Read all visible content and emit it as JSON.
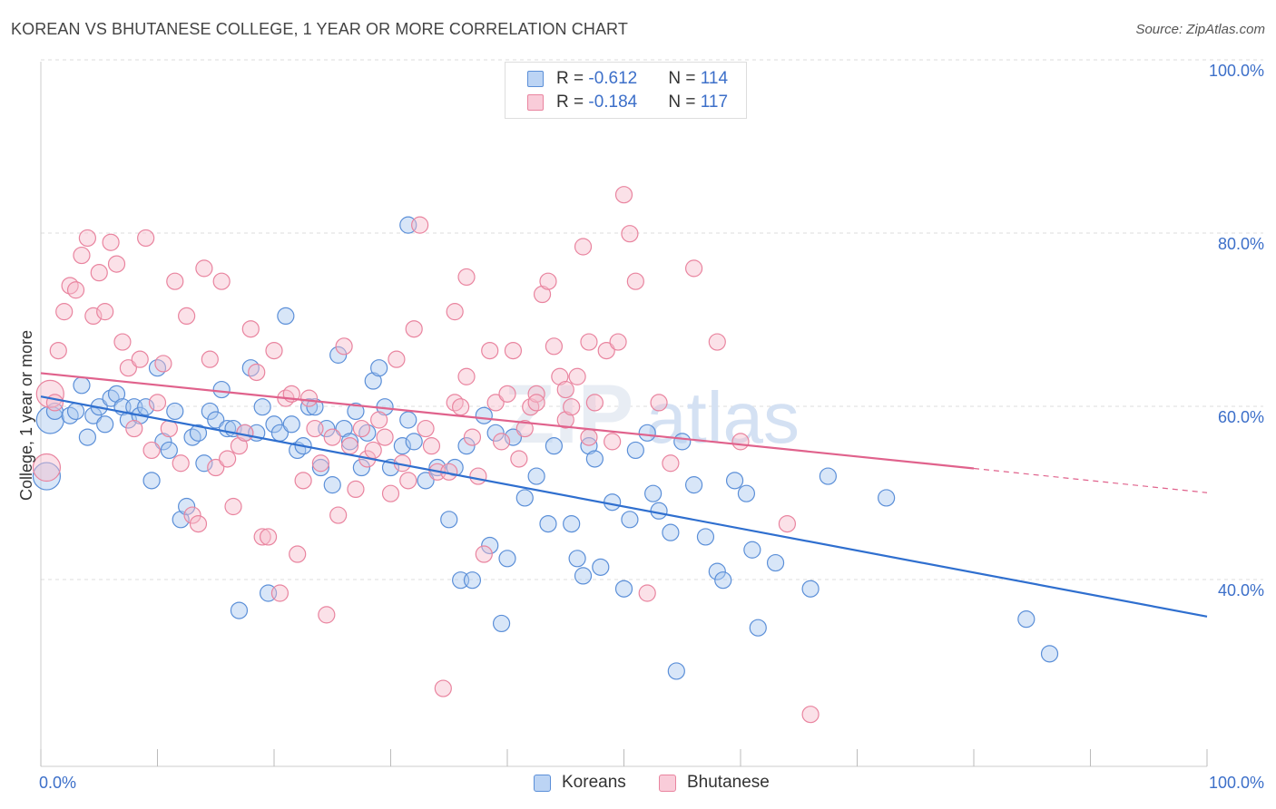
{
  "header": {
    "title": "KOREAN VS BHUTANESE COLLEGE, 1 YEAR OR MORE CORRELATION CHART",
    "source": "Source: ZipAtlas.com"
  },
  "legend": {
    "rows": [
      {
        "r_label": "R = ",
        "r_value": "-0.612",
        "n_label": "N = ",
        "n_value": "114"
      },
      {
        "r_label": "R = ",
        "r_value": "-0.184",
        "n_label": "N = ",
        "n_value": "117"
      }
    ]
  },
  "watermark": {
    "zip": "ZIP",
    "atlas": "atlas"
  },
  "colors": {
    "korean_fill": "#a9c8f0",
    "korean_stroke": "#5b8fd8",
    "korean_line": "#2f6fcf",
    "bhutanese_fill": "#f6bccd",
    "bhutanese_stroke": "#e9849f",
    "bhutanese_line": "#e0628c",
    "tick_label": "#3c6fc9",
    "grid": "#dddddd"
  },
  "chart_data": {
    "type": "scatter",
    "title": "KOREAN VS BHUTANESE COLLEGE, 1 YEAR OR MORE CORRELATION CHART",
    "xlabel": "",
    "ylabel": "College, 1 year or more",
    "xlim": [
      0,
      100
    ],
    "ylim": [
      20,
      104
    ],
    "x_tick_labels": [
      "0.0%",
      "100.0%"
    ],
    "y_ticks": [
      {
        "value": 40,
        "label": "40.0%"
      },
      {
        "value": 60,
        "label": "60.0%"
      },
      {
        "value": 80,
        "label": "80.0%"
      },
      {
        "value": 100,
        "label": "100.0%"
      }
    ],
    "grid": true,
    "legend_position": "top-center",
    "series": [
      {
        "name": "Koreans",
        "trend": {
          "x": [
            0,
            100
          ],
          "y": [
            62.7,
            37.3
          ]
        },
        "points": [
          [
            0.5,
            53.5
          ],
          [
            0.8,
            60
          ],
          [
            1.2,
            61
          ],
          [
            2.5,
            60.5
          ],
          [
            3,
            61
          ],
          [
            3.5,
            64
          ],
          [
            4,
            58
          ],
          [
            4.5,
            60.5
          ],
          [
            5,
            61.5
          ],
          [
            5.5,
            59.5
          ],
          [
            6,
            62.5
          ],
          [
            6.5,
            63
          ],
          [
            7,
            61.5
          ],
          [
            7.5,
            60
          ],
          [
            8,
            61.5
          ],
          [
            8.5,
            60.5
          ],
          [
            9,
            61.5
          ],
          [
            9.5,
            53
          ],
          [
            10,
            66
          ],
          [
            10.5,
            57.5
          ],
          [
            11,
            56.5
          ],
          [
            11.5,
            61
          ],
          [
            12,
            48.5
          ],
          [
            12.5,
            50
          ],
          [
            13,
            58
          ],
          [
            13.5,
            58.5
          ],
          [
            14,
            55
          ],
          [
            14.5,
            61
          ],
          [
            15,
            60
          ],
          [
            15.5,
            63.5
          ],
          [
            16,
            59
          ],
          [
            16.5,
            59
          ],
          [
            17,
            38
          ],
          [
            17.5,
            58.5
          ],
          [
            18,
            66
          ],
          [
            18.5,
            58.5
          ],
          [
            19,
            61.5
          ],
          [
            19.5,
            40
          ],
          [
            20,
            59.5
          ],
          [
            20.5,
            58.5
          ],
          [
            21,
            72
          ],
          [
            21.5,
            59.5
          ],
          [
            22,
            56.5
          ],
          [
            22.5,
            57
          ],
          [
            23,
            61.5
          ],
          [
            23.5,
            61.5
          ],
          [
            24,
            54.5
          ],
          [
            24.5,
            59
          ],
          [
            25,
            52.5
          ],
          [
            25.5,
            67.5
          ],
          [
            26,
            59
          ],
          [
            26.5,
            57.5
          ],
          [
            27,
            61
          ],
          [
            27.5,
            54.5
          ],
          [
            28,
            58.5
          ],
          [
            28.5,
            64.5
          ],
          [
            29,
            66
          ],
          [
            29.5,
            61.5
          ],
          [
            30,
            54.5
          ],
          [
            31,
            57
          ],
          [
            31.5,
            60
          ],
          [
            32,
            57.5
          ],
          [
            33,
            53
          ],
          [
            34,
            54.5
          ],
          [
            35,
            48.5
          ],
          [
            35.5,
            54.5
          ],
          [
            36,
            41.5
          ],
          [
            36.5,
            57
          ],
          [
            37,
            41.5
          ],
          [
            38,
            60.5
          ],
          [
            38.5,
            45.5
          ],
          [
            39,
            58.5
          ],
          [
            40,
            44
          ],
          [
            40.5,
            58
          ],
          [
            39.5,
            36.5
          ],
          [
            41.5,
            51
          ],
          [
            42.5,
            53.5
          ],
          [
            43.5,
            48
          ],
          [
            44,
            57
          ],
          [
            45.5,
            48
          ],
          [
            46,
            44
          ],
          [
            46.5,
            42
          ],
          [
            47,
            57
          ],
          [
            47.5,
            55.5
          ],
          [
            48,
            43
          ],
          [
            49,
            50.5
          ],
          [
            50,
            40.5
          ],
          [
            50.5,
            48.5
          ],
          [
            51,
            56.5
          ],
          [
            52,
            58.5
          ],
          [
            52.5,
            51.5
          ],
          [
            53,
            49.5
          ],
          [
            54,
            47
          ],
          [
            54.5,
            31
          ],
          [
            55,
            57.5
          ],
          [
            56,
            52.5
          ],
          [
            57,
            46.5
          ],
          [
            58,
            42.5
          ],
          [
            58.5,
            41.5
          ],
          [
            59.5,
            53
          ],
          [
            60.5,
            51.5
          ],
          [
            61,
            45
          ],
          [
            61.5,
            36
          ],
          [
            63,
            43.5
          ],
          [
            66,
            40.5
          ],
          [
            67.5,
            53.5
          ],
          [
            72.5,
            51
          ],
          [
            84.5,
            37
          ],
          [
            86.5,
            33
          ],
          [
            31.5,
            82.5
          ]
        ]
      },
      {
        "name": "Bhutanese",
        "trend": {
          "x": [
            0,
            80
          ],
          "y": [
            65.4,
            54.4
          ]
        },
        "trend_dashed": {
          "x": [
            80,
            100
          ],
          "y": [
            54.4,
            51.6
          ]
        },
        "points": [
          [
            0.5,
            54.5
          ],
          [
            0.8,
            63
          ],
          [
            1.2,
            62
          ],
          [
            1.5,
            68
          ],
          [
            2,
            72.5
          ],
          [
            2.5,
            75.5
          ],
          [
            3,
            75
          ],
          [
            3.5,
            79
          ],
          [
            4,
            81
          ],
          [
            4.5,
            72
          ],
          [
            5,
            77
          ],
          [
            5.5,
            72.5
          ],
          [
            6,
            80.5
          ],
          [
            6.5,
            78
          ],
          [
            7,
            69
          ],
          [
            7.5,
            66
          ],
          [
            8,
            59
          ],
          [
            8.5,
            67
          ],
          [
            9,
            81
          ],
          [
            9.5,
            56.5
          ],
          [
            10,
            62
          ],
          [
            10.5,
            66.5
          ],
          [
            11,
            59
          ],
          [
            11.5,
            76
          ],
          [
            12,
            55
          ],
          [
            12.5,
            72
          ],
          [
            13,
            49
          ],
          [
            13.5,
            48
          ],
          [
            14,
            77.5
          ],
          [
            14.5,
            67
          ],
          [
            15,
            54.5
          ],
          [
            15.5,
            76
          ],
          [
            16,
            55.5
          ],
          [
            16.5,
            50
          ],
          [
            17,
            57
          ],
          [
            17.5,
            58.5
          ],
          [
            18,
            70.5
          ],
          [
            18.5,
            65.5
          ],
          [
            19,
            46.5
          ],
          [
            19.5,
            46.5
          ],
          [
            20,
            68
          ],
          [
            20.5,
            40
          ],
          [
            21,
            62.5
          ],
          [
            21.5,
            63
          ],
          [
            22,
            44.5
          ],
          [
            22.5,
            53
          ],
          [
            23,
            62.5
          ],
          [
            23.5,
            59
          ],
          [
            24,
            55
          ],
          [
            24.5,
            37.5
          ],
          [
            25,
            58
          ],
          [
            25.5,
            49
          ],
          [
            26,
            68.5
          ],
          [
            26.5,
            57
          ],
          [
            27,
            52
          ],
          [
            27.5,
            59
          ],
          [
            28,
            55.5
          ],
          [
            28.5,
            56.5
          ],
          [
            29,
            60
          ],
          [
            29.5,
            58
          ],
          [
            30,
            51.5
          ],
          [
            30.5,
            67
          ],
          [
            31,
            55
          ],
          [
            31.5,
            53
          ],
          [
            32,
            70.5
          ],
          [
            32.5,
            82.5
          ],
          [
            33,
            59
          ],
          [
            33.5,
            57
          ],
          [
            34,
            54
          ],
          [
            34.5,
            29
          ],
          [
            35,
            54
          ],
          [
            35.5,
            62
          ],
          [
            36,
            61.5
          ],
          [
            36.5,
            65
          ],
          [
            37,
            58
          ],
          [
            37.5,
            53.5
          ],
          [
            38,
            44.5
          ],
          [
            38.5,
            68
          ],
          [
            39,
            62
          ],
          [
            39.5,
            57.5
          ],
          [
            40,
            63
          ],
          [
            40.5,
            68
          ],
          [
            41,
            55.5
          ],
          [
            41.5,
            59
          ],
          [
            42,
            61.5
          ],
          [
            42.5,
            63
          ],
          [
            43,
            74.5
          ],
          [
            43.5,
            76
          ],
          [
            44,
            68.5
          ],
          [
            44.5,
            65
          ],
          [
            45,
            60
          ],
          [
            45.5,
            61.5
          ],
          [
            46,
            65
          ],
          [
            46.5,
            80
          ],
          [
            47,
            69
          ],
          [
            47.5,
            62
          ],
          [
            48.5,
            68
          ],
          [
            49,
            57.5
          ],
          [
            49.5,
            69
          ],
          [
            50,
            86
          ],
          [
            50.5,
            81.5
          ],
          [
            51,
            76
          ],
          [
            52,
            40
          ],
          [
            53,
            62
          ],
          [
            56,
            77.5
          ],
          [
            60,
            57.5
          ],
          [
            64,
            48
          ],
          [
            66,
            26
          ],
          [
            35.5,
            72.5
          ],
          [
            36.5,
            76.5
          ],
          [
            42.5,
            62
          ],
          [
            45,
            63.5
          ],
          [
            54,
            55
          ],
          [
            58,
            69
          ],
          [
            47,
            58
          ]
        ]
      }
    ]
  },
  "bottom_legend": {
    "items": [
      "Koreans",
      "Bhutanese"
    ]
  }
}
